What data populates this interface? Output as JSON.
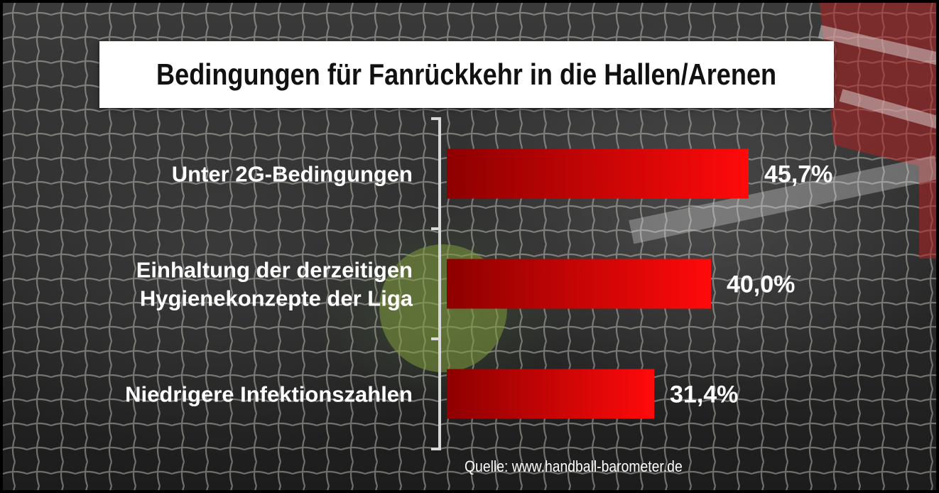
{
  "colors": {
    "bar_dark": "#8e0000",
    "bar_bright": "#ff0a0a",
    "text": "#ffffff",
    "title_bg": "#ffffff",
    "title_text": "#111111"
  },
  "chart_data": {
    "type": "bar",
    "orientation": "horizontal",
    "title": "Bedingungen für Fanrückkehr in die Hallen/Arenen",
    "categories": [
      [
        "Unter 2G-Bedingungen"
      ],
      [
        "Einhaltung der derzeitigen",
        "Hygienekonzepte der Liga"
      ],
      [
        "Niedrigere Infektionszahlen"
      ]
    ],
    "values": [
      45.7,
      40.0,
      31.4
    ],
    "value_labels": [
      "45,7%",
      "40,0%",
      "31,4%"
    ],
    "unit": "%",
    "xlim": [
      0,
      50
    ],
    "grid": false,
    "legend": "none",
    "source": "Quelle: www.handball-barometer.de"
  }
}
